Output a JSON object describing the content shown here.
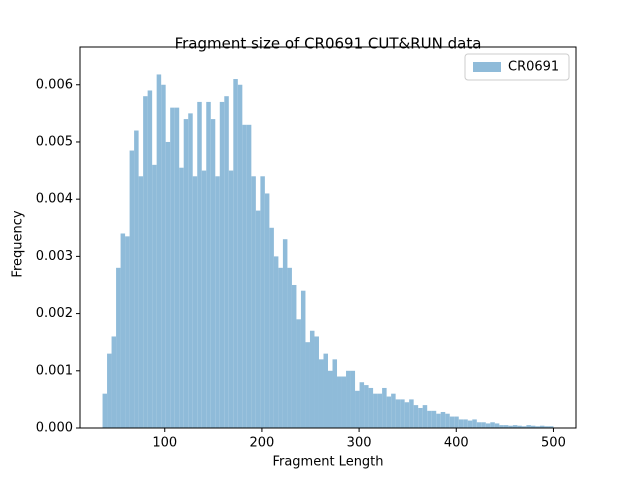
{
  "chart_data": {
    "type": "histogram",
    "title": "Fragment size of CR0691 CUT&RUN data",
    "x_label": "Fragment Length",
    "y_label": "Frequency",
    "bins": [
      36,
      40.64,
      45.28,
      49.92,
      54.56,
      59.2,
      63.84,
      68.48,
      73.12,
      77.76,
      82.4,
      87.04,
      91.68,
      96.32,
      100.96,
      105.6,
      110.24,
      114.88,
      119.52,
      124.16,
      128.8,
      133.44,
      138.08,
      142.72,
      147.36,
      152,
      156.64,
      161.28,
      165.92,
      170.56,
      175.2,
      179.84,
      184.48,
      189.12,
      193.76,
      198.4,
      203.04,
      207.68,
      212.32,
      216.96,
      221.6,
      226.24,
      230.88,
      235.52,
      240.16,
      244.8,
      249.44,
      254.08,
      258.72,
      263.36,
      268,
      272.64,
      277.28,
      281.92,
      286.56,
      291.2,
      295.84,
      300.48,
      305.12,
      309.76,
      314.4,
      319.04,
      323.68,
      328.32,
      332.96,
      337.6,
      342.24,
      346.88,
      351.52,
      356.16,
      360.8,
      365.44,
      370.08,
      374.72,
      379.36,
      384,
      388.64,
      393.28,
      397.92,
      402.56,
      407.2,
      411.84,
      416.48,
      421.12,
      425.76,
      430.4,
      435.04,
      439.68,
      444.32,
      448.96,
      453.6,
      458.24,
      462.88,
      467.52,
      472.16,
      476.8,
      481.44,
      486.08,
      490.72,
      495.36,
      500
    ],
    "series": [
      {
        "name": "CR0691",
        "color": "#8fbbd9",
        "values": [
          0.0006,
          0.0013,
          0.0016,
          0.0028,
          0.0034,
          0.00335,
          0.00485,
          0.0052,
          0.0044,
          0.0058,
          0.0059,
          0.0046,
          0.00618,
          0.006,
          0.005,
          0.0056,
          0.0056,
          0.00455,
          0.0054,
          0.0055,
          0.0044,
          0.0057,
          0.0045,
          0.0057,
          0.0054,
          0.0044,
          0.0057,
          0.0058,
          0.0045,
          0.0061,
          0.006,
          0.0053,
          0.0053,
          0.0044,
          0.0038,
          0.0044,
          0.0041,
          0.0035,
          0.003,
          0.0028,
          0.0033,
          0.0028,
          0.0025,
          0.0019,
          0.0024,
          0.0015,
          0.0017,
          0.0016,
          0.0012,
          0.0013,
          0.001,
          0.0012,
          0.0009,
          0.0009,
          0.001,
          0.001,
          0.00065,
          0.0008,
          0.00075,
          0.0007,
          0.0006,
          0.0006,
          0.0007,
          0.00055,
          0.0006,
          0.0005,
          0.0005,
          0.00045,
          0.0005,
          0.0004,
          0.00035,
          0.0004,
          0.0003,
          0.0003,
          0.00025,
          0.00028,
          0.00025,
          0.0002,
          0.0002,
          0.00015,
          0.00015,
          0.00013,
          0.00015,
          0.0001,
          0.0001,
          8e-05,
          0.0001,
          8e-05,
          5e-05,
          5e-05,
          4e-05,
          5e-05,
          4e-05,
          3e-05,
          5e-05,
          4e-05,
          3e-05,
          4e-05,
          3e-05,
          3e-05
        ]
      }
    ],
    "xlim": [
      12.8,
      523.2
    ],
    "ylim": [
      0,
      0.00666
    ],
    "xticks": [
      100,
      200,
      300,
      400,
      500
    ],
    "yticks": [
      {
        "value": 0,
        "label": "0.000"
      },
      {
        "value": 0.001,
        "label": "0.001"
      },
      {
        "value": 0.002,
        "label": "0.002"
      },
      {
        "value": 0.003,
        "label": "0.003"
      },
      {
        "value": 0.004,
        "label": "0.004"
      },
      {
        "value": 0.005,
        "label": "0.005"
      },
      {
        "value": 0.006,
        "label": "0.006"
      }
    ],
    "legend": "upper right"
  }
}
